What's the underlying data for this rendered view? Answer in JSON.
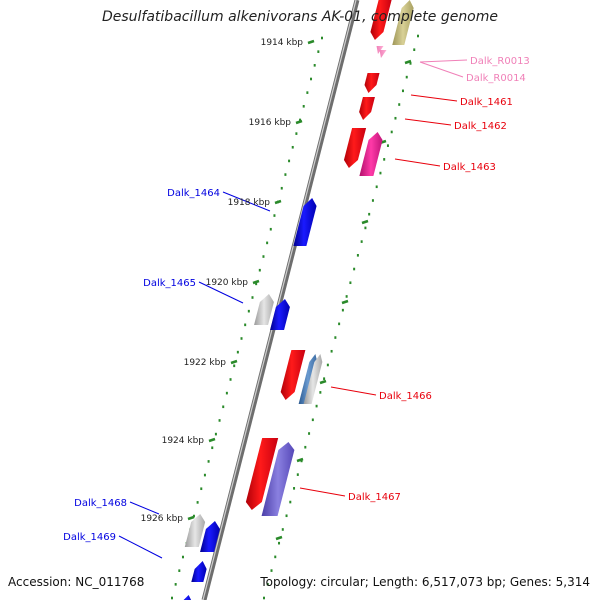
{
  "title": "Desulfatibacillum alkenivorans AK-01, complete genome",
  "footer": {
    "accession": "Accession: NC_011768",
    "summary": "Topology: circular; Length: 6,517,073 bp; Genes: 5,314"
  },
  "ticks": [
    "1914 kbp",
    "1916 kbp",
    "1918 kbp",
    "1920 kbp",
    "1922 kbp",
    "1924 kbp",
    "1926 kbp"
  ],
  "colors": {
    "forward_cds": "#e8000c",
    "reverse_cds": "#0000e0",
    "rna": "#f080b8",
    "tick_mark": "#2a8a2a",
    "backbone": "#777777"
  },
  "genes": [
    {
      "label": "Dalk_R0013",
      "strand": "forward",
      "kind": "rna"
    },
    {
      "label": "Dalk_R0014",
      "strand": "forward",
      "kind": "rna"
    },
    {
      "label": "Dalk_1461",
      "strand": "forward",
      "kind": "cds"
    },
    {
      "label": "Dalk_1462",
      "strand": "forward",
      "kind": "cds"
    },
    {
      "label": "Dalk_1463",
      "strand": "forward",
      "kind": "cds"
    },
    {
      "label": "Dalk_1464",
      "strand": "reverse",
      "kind": "cds"
    },
    {
      "label": "Dalk_1465",
      "strand": "reverse",
      "kind": "cds"
    },
    {
      "label": "Dalk_1466",
      "strand": "forward",
      "kind": "cds"
    },
    {
      "label": "Dalk_1467",
      "strand": "forward",
      "kind": "cds"
    },
    {
      "label": "Dalk_1468",
      "strand": "reverse",
      "kind": "cds"
    },
    {
      "label": "Dalk_1469",
      "strand": "reverse",
      "kind": "cds"
    }
  ]
}
